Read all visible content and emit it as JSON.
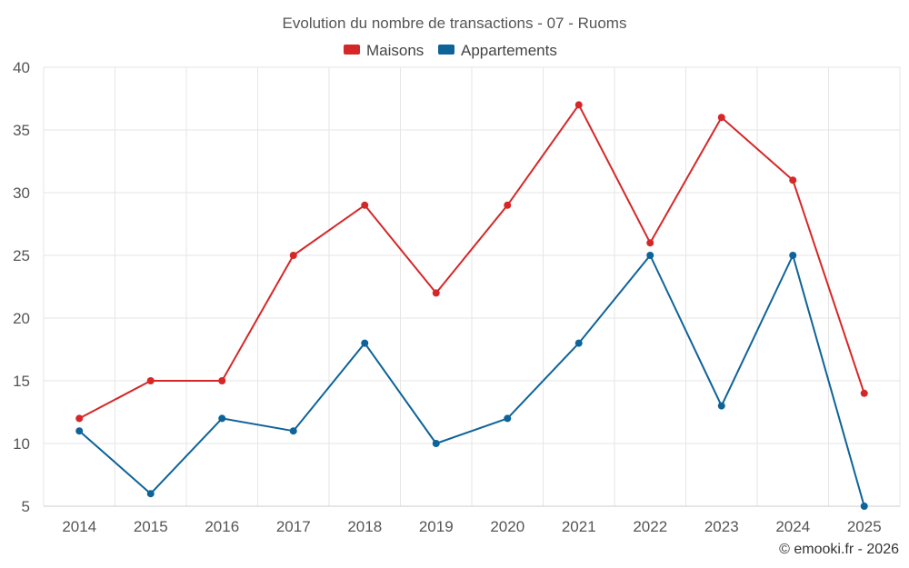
{
  "chart_data": {
    "type": "line",
    "title": "Evolution du nombre de transactions - 07 - Ruoms",
    "categories": [
      "2014",
      "2015",
      "2016",
      "2017",
      "2018",
      "2019",
      "2020",
      "2021",
      "2022",
      "2023",
      "2024",
      "2025"
    ],
    "series": [
      {
        "name": "Maisons",
        "color": "#d62728",
        "values": [
          12,
          15,
          15,
          25,
          29,
          22,
          29,
          37,
          26,
          36,
          31,
          14
        ]
      },
      {
        "name": "Appartements",
        "color": "#0e6399",
        "values": [
          11,
          6,
          12,
          11,
          18,
          10,
          12,
          18,
          25,
          13,
          25,
          5
        ]
      }
    ],
    "xlabel": "",
    "ylabel": "",
    "ylim": [
      5,
      40
    ],
    "yticks": [
      5,
      10,
      15,
      20,
      25,
      30,
      35,
      40
    ],
    "grid": true,
    "legend_position": "top-center"
  },
  "credit": "© emooki.fr - 2026"
}
